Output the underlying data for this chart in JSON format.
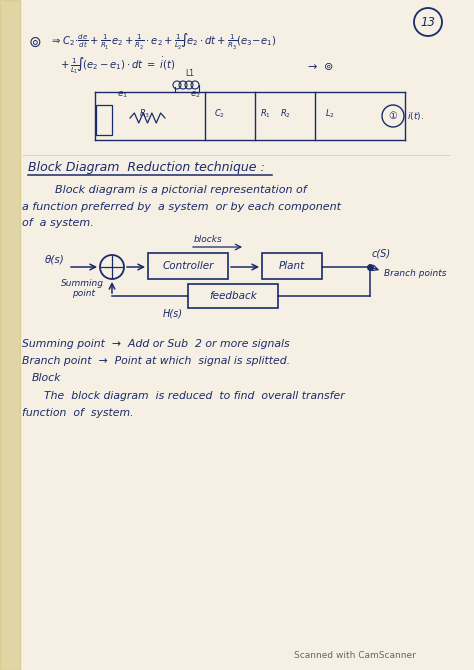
{
  "page_color": "#f5f0e3",
  "left_edge_color": "#c8b85a",
  "ink_color": "#1a2a6b",
  "title_number": "13",
  "section_title": "Block Diagram  Reduction technique :",
  "para1": "         Block diagram is a pictorial representation of",
  "para2": "a function preferred by  a system  or by each component",
  "para3": "of  a system.",
  "block_label1": "Controller",
  "block_label2": "Plant",
  "block_label3": "feedback",
  "input_label": "θ(s)",
  "output_label": "c(S)",
  "hs_label": "H(s)",
  "blocks_label": "blocks",
  "branch_label": "Branch points",
  "summing_label1": "Summing",
  "summing_label2": "point",
  "note1": "Summing point  →  Add or Sub  2 or more signals",
  "note2": "Branch point  →  Point at which  signal is splitted.",
  "note3": "   Block",
  "note4": "      The  block diagram  is reduced  to find  overall transfer",
  "note5": "function  of  system.",
  "footer": "Scanned with CamScanner"
}
